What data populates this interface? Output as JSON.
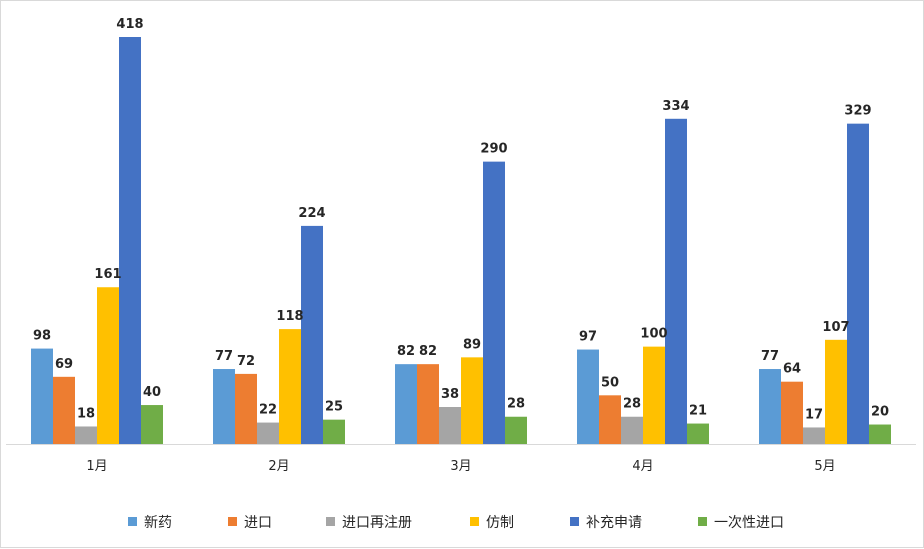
{
  "chart_data": {
    "type": "bar",
    "title": "",
    "xlabel": "",
    "ylabel": "",
    "ylim": [
      0,
      450
    ],
    "grid": false,
    "legend_position": "bottom",
    "categories": [
      "1月",
      "2月",
      "3月",
      "4月",
      "5月"
    ],
    "series": [
      {
        "name": "新药",
        "color": "#5b9bd5",
        "values": [
          98,
          77,
          82,
          97,
          77
        ]
      },
      {
        "name": "进口",
        "color": "#ed7d31",
        "values": [
          69,
          72,
          82,
          50,
          64
        ]
      },
      {
        "name": "进口再注册",
        "color": "#a5a5a5",
        "values": [
          18,
          22,
          38,
          28,
          17
        ]
      },
      {
        "name": "仿制",
        "color": "#ffc000",
        "values": [
          161,
          118,
          89,
          100,
          107
        ]
      },
      {
        "name": "补充申请",
        "color": "#4472c4",
        "values": [
          418,
          224,
          290,
          334,
          329
        ]
      },
      {
        "name": "一次性进口",
        "color": "#70ad47",
        "values": [
          40,
          25,
          28,
          21,
          20
        ]
      }
    ]
  }
}
